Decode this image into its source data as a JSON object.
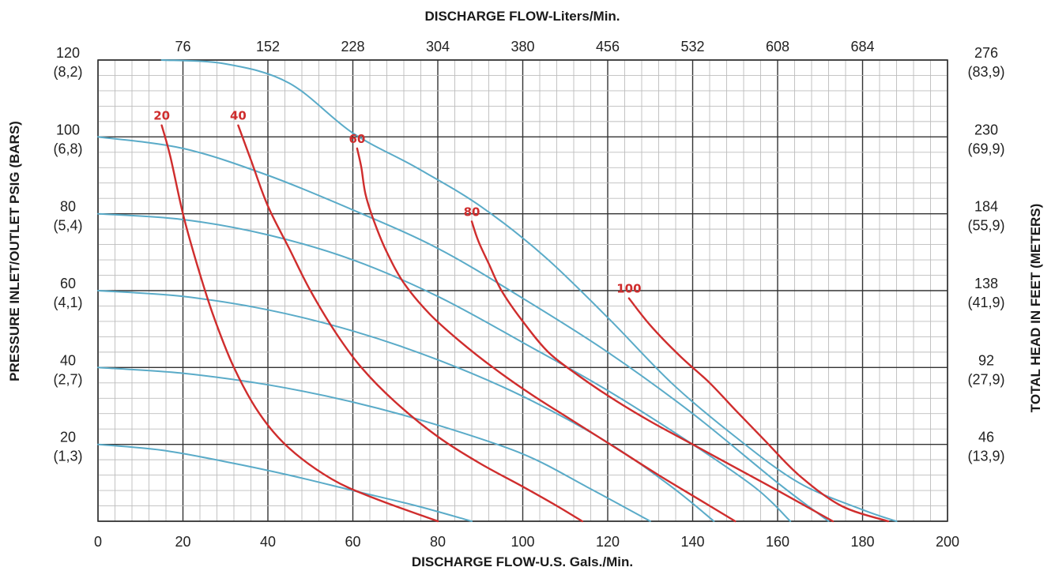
{
  "chart_data": {
    "type": "line",
    "title": "",
    "xlabel_top": "DISCHARGE FLOW-Liters/Min.",
    "xlabel_bottom": "DISCHARGE FLOW-U.S. Gals./Min.",
    "ylabel_left": "PRESSURE INLET/OUTLET PSIG (BARS)",
    "ylabel_right": "TOTAL HEAD IN FEET (METERS)",
    "xlim": [
      0,
      200
    ],
    "ylim": [
      0,
      120
    ],
    "grid": true,
    "x_ticks_bottom": [
      "0",
      "20",
      "40",
      "60",
      "80",
      "100",
      "120",
      "140",
      "160",
      "180",
      "200"
    ],
    "x_ticks_top": [
      {
        "value": 20,
        "label": "76"
      },
      {
        "value": 40,
        "label": "152"
      },
      {
        "value": 60,
        "label": "228"
      },
      {
        "value": 80,
        "label": "304"
      },
      {
        "value": 100,
        "label": "380"
      },
      {
        "value": 120,
        "label": "456"
      },
      {
        "value": 140,
        "label": "532"
      },
      {
        "value": 160,
        "label": "608"
      },
      {
        "value": 180,
        "label": "684"
      }
    ],
    "y_ticks_left": [
      {
        "value": 120,
        "label": "120",
        "sub": "(8,2)"
      },
      {
        "value": 100,
        "label": "100",
        "sub": "(6,8)"
      },
      {
        "value": 80,
        "label": "80",
        "sub": "(5,4)"
      },
      {
        "value": 60,
        "label": "60",
        "sub": "(4,1)"
      },
      {
        "value": 40,
        "label": "40",
        "sub": "(2,7)"
      },
      {
        "value": 20,
        "label": "20",
        "sub": "(1,3)"
      }
    ],
    "y_ticks_right": [
      {
        "value": 120,
        "label": "276",
        "sub": "(83,9)"
      },
      {
        "value": 100,
        "label": "230",
        "sub": "(69,9)"
      },
      {
        "value": 80,
        "label": "184",
        "sub": "(55,9)"
      },
      {
        "value": 60,
        "label": "138",
        "sub": "(41,9)"
      },
      {
        "value": 40,
        "label": "92",
        "sub": "(27,9)"
      },
      {
        "value": 20,
        "label": "46",
        "sub": "(13,9)"
      }
    ],
    "series_pressure": [
      {
        "x": [
          0,
          15,
          30,
          45,
          60,
          75,
          88
        ],
        "y": [
          20,
          18.5,
          15.5,
          12,
          8,
          4,
          0
        ]
      },
      {
        "x": [
          0,
          20,
          40,
          60,
          80,
          100,
          115,
          130
        ],
        "y": [
          40,
          38.5,
          35.5,
          31,
          25,
          17.5,
          9,
          0
        ]
      },
      {
        "x": [
          0,
          20,
          40,
          60,
          80,
          100,
          120,
          135,
          145
        ],
        "y": [
          60,
          58.5,
          55,
          49.5,
          42,
          32.5,
          20.5,
          9,
          0
        ]
      },
      {
        "x": [
          0,
          20,
          40,
          60,
          80,
          100,
          120,
          140,
          155,
          163
        ],
        "y": [
          80,
          78.5,
          74.5,
          68,
          58.5,
          46.5,
          34,
          20,
          8.5,
          0
        ]
      },
      {
        "x": [
          0,
          20,
          40,
          60,
          80,
          100,
          120,
          140,
          160,
          172
        ],
        "y": [
          100,
          97,
          90,
          81,
          71,
          58,
          44,
          28,
          10,
          0
        ]
      },
      {
        "x": [
          15,
          30,
          45,
          60,
          75,
          90,
          105,
          120,
          135,
          150,
          165,
          180,
          188
        ],
        "y": [
          120,
          119,
          114,
          101,
          92,
          82,
          69,
          53,
          36,
          22,
          10,
          3,
          0
        ]
      }
    ],
    "series_air": [
      {
        "label": "20",
        "x": [
          15,
          17,
          20,
          23,
          27,
          32,
          38,
          45,
          55,
          65,
          80
        ],
        "y": [
          103,
          95,
          80,
          68,
          54,
          40,
          28,
          19,
          11,
          6,
          0
        ]
      },
      {
        "label": "40",
        "x": [
          33,
          36,
          40,
          45,
          50,
          56,
          62,
          70,
          80,
          90,
          100,
          108,
          114
        ],
        "y": [
          103,
          94,
          82,
          71,
          60,
          49,
          40,
          31,
          22,
          15,
          9,
          4,
          0
        ]
      },
      {
        "label": "60",
        "x": [
          61,
          62,
          63,
          65,
          68,
          72,
          78,
          85,
          93,
          102,
          112,
          122,
          132,
          141,
          150
        ],
        "y": [
          97,
          92,
          85,
          78,
          70,
          62,
          54,
          47,
          40,
          33,
          26,
          19,
          12,
          6,
          0
        ]
      },
      {
        "label": "80",
        "x": [
          88,
          89.5,
          92,
          95,
          100,
          106,
          113,
          121,
          130,
          140,
          150,
          160,
          173
        ],
        "y": [
          78,
          73,
          67,
          60,
          52,
          44,
          38,
          32,
          26,
          20,
          14,
          8,
          0
        ]
      },
      {
        "label": "100",
        "x": [
          125,
          130,
          137,
          144,
          150,
          157,
          165,
          175,
          186
        ],
        "y": [
          58,
          51,
          43,
          36,
          29,
          21,
          12,
          4,
          0
        ]
      }
    ],
    "colors": {
      "pressure_curve": "#5aabc8",
      "air_curve": "#cf2d2d",
      "grid_minor": "#bdbdbd",
      "grid_major": "#333333"
    }
  }
}
